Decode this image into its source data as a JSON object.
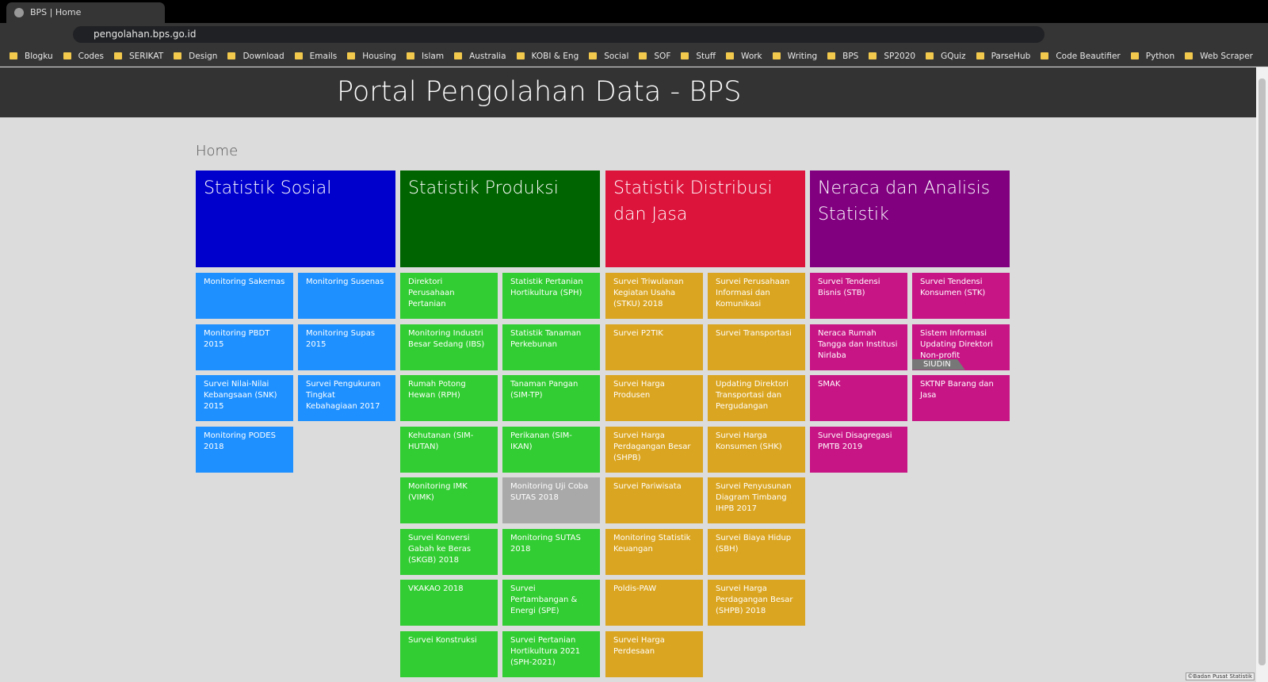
{
  "browser": {
    "tab_title": "BPS | Home",
    "url": "pengolahan.bps.go.id",
    "bookmarks": [
      "Blogku",
      "Codes",
      "SERIKAT",
      "Design",
      "Download",
      "Emails",
      "Housing",
      "Islam",
      "Australia",
      "KOBI & Eng",
      "Social",
      "SOF",
      "Stuff",
      "Work",
      "Writing",
      "BPS",
      "SP2020",
      "GQuiz",
      "ParseHub",
      "Code Beautifier",
      "Python",
      "Web Scraper"
    ]
  },
  "page": {
    "header": "Portal Pengolahan Data - BPS",
    "breadcrumb": "Home",
    "footer": "©Badan Pusat Statistik",
    "categories": [
      {
        "title": "Statistik Sosial",
        "color": "#0000cd",
        "tile_color": "#1e90ff",
        "tiles": [
          {
            "label": "Monitoring Sakernas"
          },
          {
            "label": "Monitoring Susenas"
          },
          {
            "label": "Monitoring PBDT 2015"
          },
          {
            "label": "Monitoring Supas 2015"
          },
          {
            "label": "Survei Nilai-Nilai Kebangsaan (SNK) 2015"
          },
          {
            "label": "Survei Pengukuran Tingkat Kebahagiaan 2017"
          },
          {
            "label": "Monitoring PODES 2018"
          }
        ]
      },
      {
        "title": "Statistik Produksi",
        "color": "#006400",
        "tile_color": "#32cd32",
        "tiles": [
          {
            "label": "Direktori Perusahaan Pertanian"
          },
          {
            "label": "Statistik Pertanian Hortikultura (SPH)"
          },
          {
            "label": "Monitoring Industri Besar Sedang (IBS)"
          },
          {
            "label": "Statistik Tanaman Perkebunan"
          },
          {
            "label": "Rumah Potong Hewan (RPH)"
          },
          {
            "label": "Tanaman Pangan (SIM-TP)"
          },
          {
            "label": "Kehutanan (SIM-HUTAN)"
          },
          {
            "label": "Perikanan (SIM-IKAN)"
          },
          {
            "label": "Monitoring IMK (VIMK)"
          },
          {
            "label": "Monitoring Uji Coba SUTAS 2018",
            "color": "#a9a9a9"
          },
          {
            "label": "Survei Konversi Gabah ke Beras (SKGB) 2018"
          },
          {
            "label": "Monitoring SUTAS 2018"
          },
          {
            "label": "VKAKAO 2018"
          },
          {
            "label": "Survei Pertambangan & Energi (SPE)"
          },
          {
            "label": "Survei Konstruksi"
          },
          {
            "label": "Survei Pertanian Hortikultura 2021 (SPH-2021)"
          }
        ]
      },
      {
        "title": "Statistik Distribusi dan Jasa",
        "color": "#dc143c",
        "tile_color": "#daa520",
        "tiles": [
          {
            "label": "Survei Triwulanan Kegiatan Usaha (STKU) 2018"
          },
          {
            "label": "Survei Perusahaan Informasi dan Komunikasi"
          },
          {
            "label": "Survei P2TIK"
          },
          {
            "label": "Survei Transportasi"
          },
          {
            "label": "Survei Harga Produsen"
          },
          {
            "label": "Updating Direktori Transportasi dan Pergudangan"
          },
          {
            "label": "Survei Harga Perdagangan Besar (SHPB)"
          },
          {
            "label": "Survei Harga Konsumen (SHK)"
          },
          {
            "label": "Survei Pariwisata"
          },
          {
            "label": "Survei Penyusunan Diagram Timbang IHPB 2017"
          },
          {
            "label": "Monitoring Statistik Keuangan"
          },
          {
            "label": "Survei Biaya Hidup (SBH)"
          },
          {
            "label": "Poldis-PAW"
          },
          {
            "label": "Survei Harga Perdagangan Besar (SHPB) 2018"
          },
          {
            "label": "Survei Harga Perdesaan"
          }
        ]
      },
      {
        "title": "Neraca dan Analisis Statistik",
        "color": "#800080",
        "tile_color": "#c71585",
        "tiles": [
          {
            "label": "Survei Tendensi Bisnis (STB)"
          },
          {
            "label": "Survei Tendensi Konsumen (STK)"
          },
          {
            "label": "Neraca Rumah Tangga dan Institusi Nirlaba"
          },
          {
            "label": "Sistem Informasi Updating Direktori Non-profit",
            "badge": "SIUDIN"
          },
          {
            "label": "SMAK"
          },
          {
            "label": "SKTNP Barang dan Jasa"
          },
          {
            "label": "Survei Disagregasi PMTB 2019"
          }
        ]
      }
    ]
  }
}
